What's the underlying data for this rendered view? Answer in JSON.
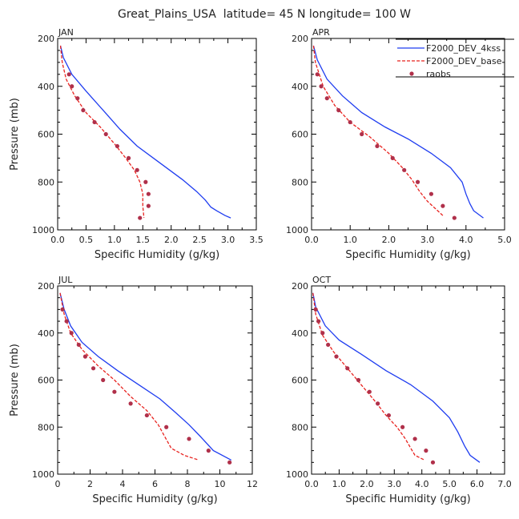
{
  "figure_title": "Great_Plains_USA  latitude= 45 N longitude= 100 W",
  "legend": {
    "placement": "top-right of APR panel",
    "entries": [
      {
        "label": "F2000_DEV_4kss",
        "color": "#1f3df0",
        "style": "solid"
      },
      {
        "label": "F2000_DEV_base",
        "color": "#e8231f",
        "style": "dashed"
      },
      {
        "label": "raobs",
        "color": "#b0304a",
        "style": "dot"
      }
    ]
  },
  "chart_data": [
    {
      "type": "line",
      "panel_label": "JAN",
      "xlabel": "Specific Humidity (g/kg)",
      "ylabel": "Pressure (mb)",
      "xlim": [
        0,
        3.5
      ],
      "ylim": [
        1000,
        200
      ],
      "xticks": [
        "0.0",
        "0.5",
        "1.0",
        "1.5",
        "2.0",
        "2.5",
        "3.0",
        "3.5"
      ],
      "yticks": [
        "200",
        "400",
        "600",
        "800",
        "1000"
      ],
      "series": [
        {
          "name": "F2000_DEV_4kss",
          "style": "solid",
          "color": "#1f3df0",
          "x": [
            0.05,
            0.1,
            0.25,
            0.5,
            0.8,
            1.1,
            1.4,
            1.8,
            2.2,
            2.45,
            2.6,
            2.7,
            2.8,
            2.95,
            3.05
          ],
          "y": [
            230,
            280,
            350,
            420,
            500,
            580,
            650,
            720,
            790,
            840,
            875,
            905,
            920,
            940,
            950
          ]
        },
        {
          "name": "F2000_DEV_base",
          "style": "dashed",
          "color": "#e8231f",
          "x": [
            0.05,
            0.08,
            0.15,
            0.3,
            0.5,
            0.75,
            1.0,
            1.2,
            1.35,
            1.45,
            1.5,
            1.5,
            1.52
          ],
          "y": [
            230,
            300,
            370,
            440,
            510,
            570,
            640,
            700,
            750,
            800,
            850,
            900,
            950
          ]
        },
        {
          "name": "raobs",
          "style": "dot",
          "color": "#b0304a",
          "x": [
            0.2,
            0.25,
            0.35,
            0.45,
            0.65,
            0.85,
            1.05,
            1.25,
            1.4,
            1.55,
            1.6,
            1.6,
            1.45
          ],
          "y": [
            350,
            400,
            450,
            500,
            550,
            600,
            650,
            700,
            750,
            800,
            850,
            900,
            950
          ]
        }
      ]
    },
    {
      "type": "line",
      "panel_label": "APR",
      "xlabel": "Specific Humidity (g/kg)",
      "ylabel": "Pressure (mb)",
      "xlim": [
        0,
        5.0
      ],
      "ylim": [
        1000,
        200
      ],
      "xticks": [
        "0.0",
        "1.0",
        "2.0",
        "3.0",
        "4.0",
        "5.0"
      ],
      "yticks": [
        "200",
        "400",
        "600",
        "800",
        "1000"
      ],
      "series": [
        {
          "name": "F2000_DEV_4kss",
          "style": "solid",
          "color": "#1f3df0",
          "x": [
            0.05,
            0.15,
            0.4,
            0.8,
            1.3,
            1.9,
            2.5,
            3.1,
            3.6,
            3.9,
            4.0,
            4.1,
            4.2,
            4.45
          ],
          "y": [
            230,
            290,
            370,
            440,
            510,
            570,
            620,
            680,
            740,
            800,
            850,
            890,
            920,
            950
          ]
        },
        {
          "name": "F2000_DEV_base",
          "style": "dashed",
          "color": "#e8231f",
          "x": [
            0.05,
            0.1,
            0.3,
            0.6,
            1.0,
            1.5,
            2.0,
            2.35,
            2.6,
            2.8,
            3.0,
            3.2,
            3.4
          ],
          "y": [
            230,
            300,
            400,
            480,
            550,
            610,
            680,
            740,
            790,
            840,
            880,
            910,
            940
          ]
        },
        {
          "name": "raobs",
          "style": "dot",
          "color": "#b0304a",
          "x": [
            0.15,
            0.25,
            0.4,
            0.7,
            1.0,
            1.3,
            1.7,
            2.1,
            2.4,
            2.75,
            3.1,
            3.4,
            3.7
          ],
          "y": [
            350,
            400,
            450,
            500,
            550,
            600,
            650,
            700,
            750,
            800,
            850,
            900,
            950
          ]
        }
      ]
    },
    {
      "type": "line",
      "panel_label": "JUL",
      "xlabel": "Specific Humidity (g/kg)",
      "ylabel": "Pressure (mb)",
      "xlim": [
        0,
        12
      ],
      "ylim": [
        1000,
        200
      ],
      "xticks": [
        "0",
        "2",
        "4",
        "6",
        "8",
        "10",
        "12"
      ],
      "yticks": [
        "200",
        "400",
        "600",
        "800",
        "1000"
      ],
      "series": [
        {
          "name": "F2000_DEV_4kss",
          "style": "solid",
          "color": "#1f3df0",
          "x": [
            0.15,
            0.4,
            0.8,
            1.5,
            2.5,
            3.7,
            5.0,
            6.3,
            7.3,
            8.1,
            8.8,
            9.6,
            10.7
          ],
          "y": [
            230,
            300,
            370,
            440,
            500,
            560,
            620,
            680,
            740,
            790,
            840,
            900,
            940
          ]
        },
        {
          "name": "F2000_DEV_base",
          "style": "dashed",
          "color": "#e8231f",
          "x": [
            0.15,
            0.4,
            0.8,
            1.5,
            2.5,
            3.5,
            4.5,
            5.5,
            6.2,
            6.6,
            7.0,
            7.8,
            8.7
          ],
          "y": [
            230,
            320,
            400,
            470,
            540,
            600,
            670,
            730,
            790,
            840,
            890,
            920,
            940
          ]
        },
        {
          "name": "raobs",
          "style": "dot",
          "color": "#b0304a",
          "x": [
            0.3,
            0.55,
            0.85,
            1.3,
            1.7,
            2.2,
            2.8,
            3.5,
            4.5,
            5.5,
            6.7,
            8.1,
            9.3,
            10.6
          ],
          "y": [
            300,
            350,
            400,
            450,
            500,
            550,
            600,
            650,
            700,
            750,
            800,
            850,
            900,
            950
          ]
        }
      ]
    },
    {
      "type": "line",
      "panel_label": "OCT",
      "xlabel": "Specific Humidity (g/kg)",
      "ylabel": "Pressure (mb)",
      "xlim": [
        0,
        7.0
      ],
      "ylim": [
        1000,
        200
      ],
      "xticks": [
        "0.0",
        "1.0",
        "2.0",
        "3.0",
        "4.0",
        "5.0",
        "6.0",
        "7.0"
      ],
      "yticks": [
        "200",
        "400",
        "600",
        "800",
        "1000"
      ],
      "series": [
        {
          "name": "F2000_DEV_4kss",
          "style": "solid",
          "color": "#1f3df0",
          "x": [
            0.05,
            0.15,
            0.5,
            1.0,
            1.8,
            2.7,
            3.6,
            4.4,
            5.0,
            5.3,
            5.55,
            5.75,
            6.1
          ],
          "y": [
            230,
            290,
            370,
            430,
            490,
            560,
            620,
            690,
            760,
            820,
            880,
            920,
            950
          ]
        },
        {
          "name": "F2000_DEV_base",
          "style": "dashed",
          "color": "#e8231f",
          "x": [
            0.05,
            0.15,
            0.4,
            0.8,
            1.3,
            1.8,
            2.3,
            2.7,
            3.1,
            3.4,
            3.6,
            3.75,
            4.1
          ],
          "y": [
            230,
            320,
            410,
            480,
            550,
            620,
            690,
            750,
            800,
            850,
            890,
            920,
            940
          ]
        },
        {
          "name": "raobs",
          "style": "dot",
          "color": "#b0304a",
          "x": [
            0.15,
            0.25,
            0.4,
            0.6,
            0.9,
            1.3,
            1.7,
            2.1,
            2.4,
            2.8,
            3.3,
            3.75,
            4.15,
            4.4
          ],
          "y": [
            300,
            350,
            400,
            450,
            500,
            550,
            600,
            650,
            700,
            750,
            800,
            850,
            900,
            950
          ]
        }
      ]
    }
  ]
}
